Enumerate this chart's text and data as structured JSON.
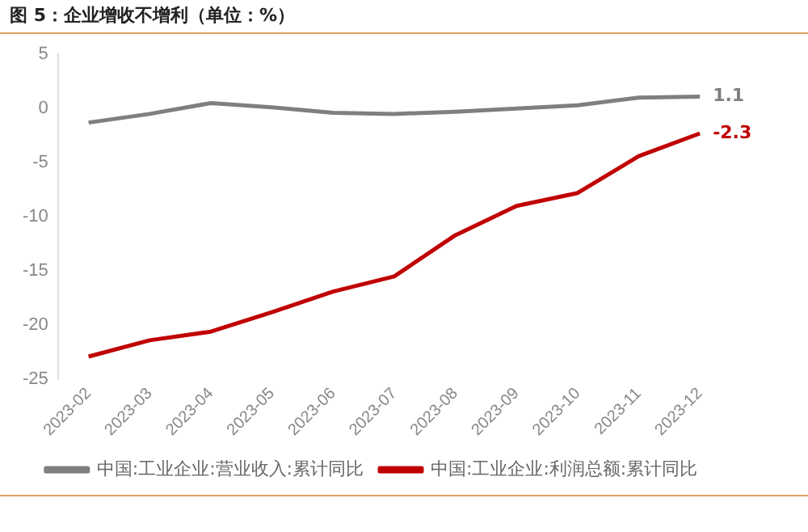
{
  "chart_data": {
    "type": "line",
    "title": "图 5：企业增收不增利（单位：%）",
    "categories": [
      "2023-02",
      "2023-03",
      "2023-04",
      "2023-05",
      "2023-06",
      "2023-07",
      "2023-08",
      "2023-09",
      "2023-10",
      "2023-11",
      "2023-12"
    ],
    "series": [
      {
        "name": "中国:工业企业:营业收入:累计同比",
        "color": "#7f7f7f",
        "values": [
          -1.3,
          -0.5,
          0.5,
          0.1,
          -0.4,
          -0.5,
          -0.3,
          0,
          0.3,
          1.0,
          1.1
        ],
        "value_labels": [
          null,
          null,
          null,
          null,
          null,
          null,
          null,
          null,
          null,
          null,
          "1.1"
        ]
      },
      {
        "name": "中国:工业企业:利润总额:累计同比",
        "color": "#c00000",
        "values": [
          -22.9,
          -21.4,
          -20.6,
          -18.8,
          -16.9,
          -15.5,
          -11.7,
          -9.0,
          -7.8,
          -4.4,
          -2.3
        ],
        "value_labels": [
          null,
          null,
          null,
          null,
          null,
          null,
          null,
          null,
          null,
          null,
          "-2.3"
        ]
      }
    ],
    "ylim": [
      -25,
      5
    ],
    "yticks": [
      -25,
      -20,
      -15,
      -10,
      -5,
      0,
      5
    ],
    "grid": false,
    "legend": "bottom",
    "marker": "none",
    "line_style": "solid"
  }
}
